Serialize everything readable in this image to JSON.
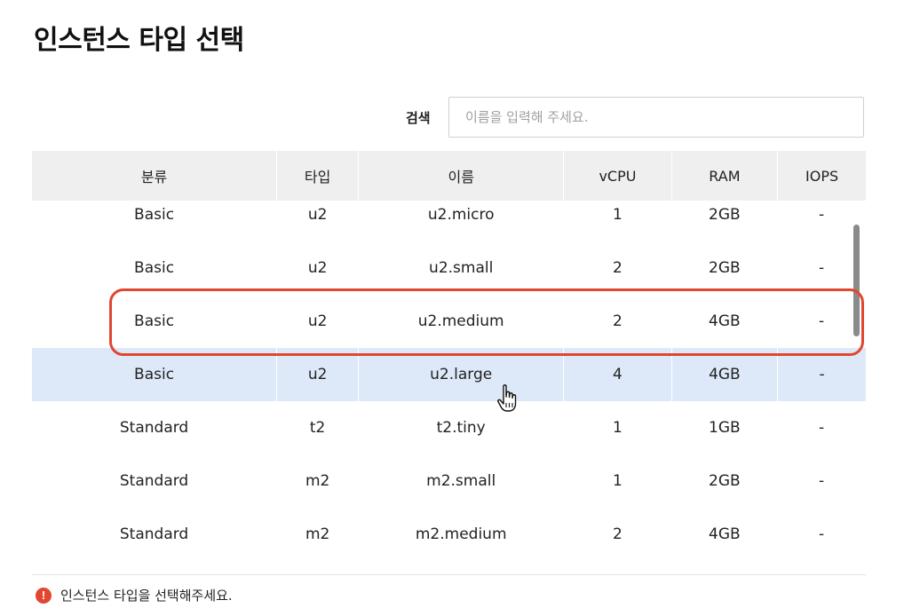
{
  "title": "인스턴스 타입 선택",
  "search": {
    "label": "검색",
    "placeholder": "이름을 입력해 주세요.",
    "value": ""
  },
  "table": {
    "headers": [
      "분류",
      "타입",
      "이름",
      "vCPU",
      "RAM",
      "IOPS"
    ],
    "rows": [
      [
        "Basic",
        "u2",
        "u2.micro",
        "1",
        "2GB",
        "-"
      ],
      [
        "Basic",
        "u2",
        "u2.small",
        "2",
        "2GB",
        "-"
      ],
      [
        "Basic",
        "u2",
        "u2.medium",
        "2",
        "4GB",
        "-"
      ],
      [
        "Basic",
        "u2",
        "u2.large",
        "4",
        "4GB",
        "-"
      ],
      [
        "Standard",
        "t2",
        "t2.tiny",
        "1",
        "1GB",
        "-"
      ],
      [
        "Standard",
        "m2",
        "m2.small",
        "1",
        "2GB",
        "-"
      ],
      [
        "Standard",
        "m2",
        "m2.medium",
        "2",
        "4GB",
        "-"
      ]
    ]
  },
  "error_message": "인스턴스 타입을 선택해주세요.",
  "error_icon_glyph": "!",
  "colors": {
    "highlight_outline": "#e1462f",
    "hover_row": "#dde9f8",
    "header_bg": "#efefef"
  }
}
